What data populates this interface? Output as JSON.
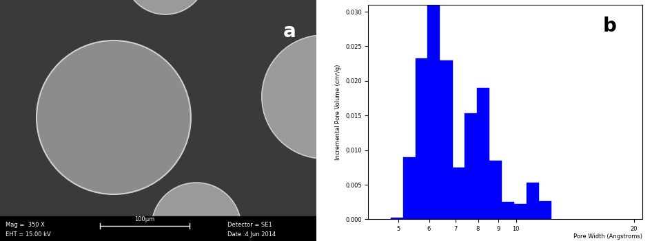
{
  "chart_data": {
    "type": "histogram",
    "label": "b",
    "x_label": "Pore Width (Angstroms)",
    "y_label": "Incremental Pore Volume (cm³/g)",
    "bins": [
      4.8,
      5.15,
      5.55,
      5.95,
      6.4,
      6.9,
      7.4,
      7.95,
      8.55,
      9.2,
      9.9,
      10.65,
      11.45,
      12.3
    ],
    "values": [
      0.0002,
      0.009,
      0.0233,
      0.031,
      0.023,
      0.0075,
      0.0153,
      0.019,
      0.0085,
      0.0025,
      0.0022,
      0.0053,
      0.0026
    ],
    "color": "#0000ff",
    "log": "x",
    "xlim": [
      4.2,
      21
    ],
    "xticks": [
      5,
      6,
      7,
      8,
      9,
      10,
      20
    ],
    "ylim": [
      0,
      0.031
    ],
    "yticks": [
      {
        "value": 0,
        "label": "0.000"
      },
      {
        "value": 0.005,
        "label": "0.005"
      },
      {
        "value": 0.01,
        "label": "0.010"
      },
      {
        "value": 0.015,
        "label": "0.015"
      },
      {
        "value": 0.02,
        "label": "0.020"
      },
      {
        "value": 0.025,
        "label": "0.025"
      },
      {
        "value": 0.03,
        "label": "0.030"
      }
    ],
    "grid": false
  },
  "micrograph": {
    "label": "a",
    "magnification": "Mag =  350 X",
    "voltage": "EHT = 15.00 kV",
    "scale_bar": "100µm",
    "detector": "Detector = SE1",
    "date": "Date :4 Jun 2014"
  }
}
